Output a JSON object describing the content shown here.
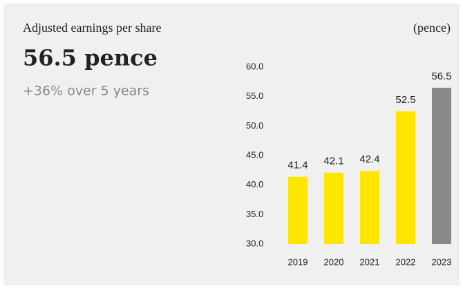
{
  "chart_data": {
    "type": "bar",
    "title": "Adjusted earnings per share",
    "unit_label": "(pence)",
    "headline": "56.5 pence",
    "subtitle": "+36% over 5 years",
    "categories": [
      "2019",
      "2020",
      "2021",
      "2022",
      "2023"
    ],
    "values": [
      41.4,
      42.1,
      42.4,
      52.5,
      56.5
    ],
    "colors": [
      "#ffe600",
      "#ffe600",
      "#ffe600",
      "#ffe600",
      "#898989"
    ],
    "ylim": [
      30,
      60
    ],
    "yticks": [
      {
        "value": 30,
        "label": "30.0"
      },
      {
        "value": 35,
        "label": "35.0"
      },
      {
        "value": 40,
        "label": "40.0"
      },
      {
        "value": 45,
        "label": "45.0"
      },
      {
        "value": 50,
        "label": "50.0"
      },
      {
        "value": 55,
        "label": "55.0"
      },
      {
        "value": 60,
        "label": "60.0"
      }
    ],
    "grid": false
  }
}
